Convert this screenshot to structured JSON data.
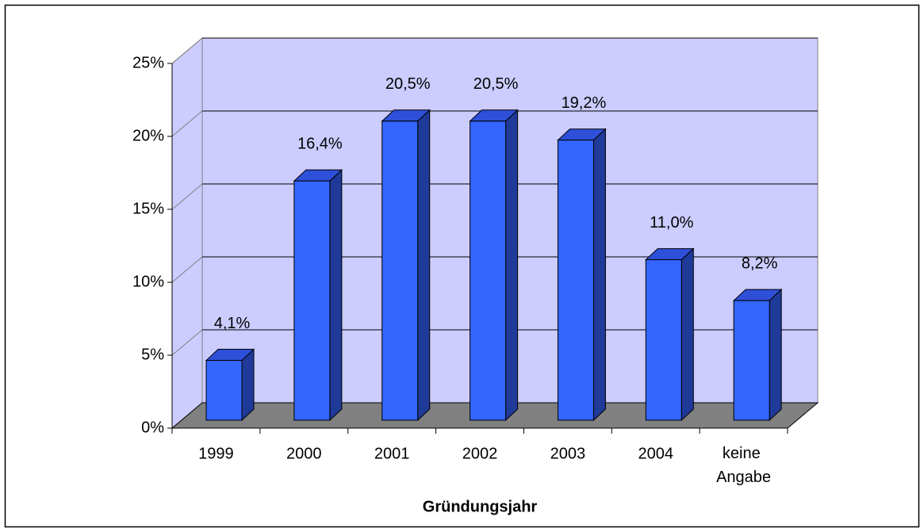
{
  "chart_data": {
    "type": "bar3d",
    "x_label": "Gründungsjahr",
    "categories": [
      "1999",
      "2000",
      "2001",
      "2002",
      "2003",
      "2004",
      "keine Angabe"
    ],
    "values": [
      4.1,
      16.4,
      20.5,
      20.5,
      19.2,
      11.0,
      8.2
    ],
    "value_labels": [
      "4,1%",
      "16,4%",
      "20,5%",
      "20,5%",
      "19,2%",
      "11,0%",
      "8,2%"
    ],
    "color": "#3366ff",
    "ylim": [
      0,
      25
    ],
    "yticks": [
      {
        "value": 0,
        "label": "0%"
      },
      {
        "value": 5,
        "label": "5%"
      },
      {
        "value": 10,
        "label": "10%"
      },
      {
        "value": 15,
        "label": "15%"
      },
      {
        "value": 20,
        "label": "20%"
      },
      {
        "value": 25,
        "label": "25%"
      }
    ],
    "grid": true
  }
}
